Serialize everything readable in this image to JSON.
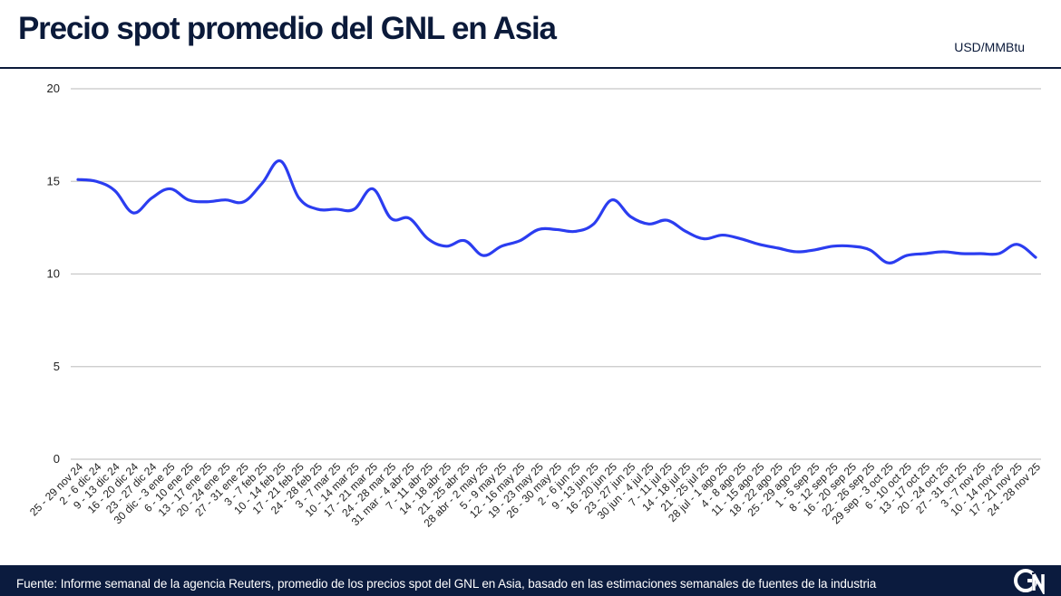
{
  "header": {
    "title": "Precio spot promedio del GNL en Asia",
    "unit": "USD/MMBtu"
  },
  "footer": {
    "source": "Fuente: Informe semanal de la agencia Reuters, promedio de los precios spot del GNL en Asia, basado en las estimaciones semanales de fuentes de la industria",
    "logo_icon": "gnl-logo-icon"
  },
  "colors": {
    "line": "#2b3df0",
    "grid": "#c8c8c8",
    "footer_bg": "#0b1b3e",
    "title": "#0b1a3a"
  },
  "chart_data": {
    "type": "line",
    "title": "Precio spot promedio del GNL en Asia",
    "ylabel": "USD/MMBtu",
    "xlabel": "",
    "ylim": [
      0,
      20
    ],
    "yticks": [
      0,
      5,
      10,
      15,
      20
    ],
    "grid": true,
    "categories": [
      "25 - 29 nov 24",
      "2 - 6 dic 24",
      "9 - 13 dic 24",
      "16 - 20 dic 24",
      "23 - 27 dic 24",
      "30 dic - 3 ene 25",
      "6 - 10 ene 25",
      "13 - 17 ene 25",
      "20 - 24 ene 25",
      "27 - 31 ene 25",
      "3 - 7 feb 25",
      "10 - 14 feb 25",
      "17 - 21 feb 25",
      "24 - 28 feb 25",
      "3 - 7 mar 25",
      "10 - 14 mar 25",
      "17 - 21 mar 25",
      "24 - 28 mar 25",
      "31 mar - 4 abr 25",
      "7 - 11 abr 25",
      "14 - 18 abr 25",
      "21 - 25 abr 25",
      "28 abr - 2 may 25",
      "5 - 9 may 25",
      "12 - 16 may 25",
      "19 - 23 may 25",
      "26 - 30 may 25",
      "2 - 6 jun 25",
      "9 - 13 jun 25",
      "16 - 20 jun 25",
      "23 - 27 jun 25",
      "30 jun - 4 jul 25",
      "7 - 11 jul 25",
      "14 - 18 jul 25",
      "21 - 25 jul 25",
      "28 jul - 1 ago 25",
      "4 - 8 ago 25",
      "11 - 15 ago 25",
      "18 - 22 ago 25",
      "25 - 29 ago 25",
      "1 - 5 sep 25",
      "8 - 12 sep 25",
      "16 - 20 sep 25",
      "22 - 26 sep 25",
      "29 sep - 3 oct 25",
      "6 - 10 oct 25",
      "13 - 17 oct 25",
      "20 - 24 oct 25",
      "27 - 31 oct 25",
      "3 - 7 nov 25",
      "10 - 14 nov 25",
      "17 - 21 nov 25",
      "24 - 28 nov 25"
    ],
    "series": [
      {
        "values": [
          15.1,
          15.0,
          14.5,
          13.3,
          14.1,
          14.6,
          14.0,
          13.9,
          14.0,
          13.9,
          14.9,
          16.1,
          14.1,
          13.5,
          13.5,
          13.5,
          14.6,
          13.0,
          13.0,
          11.9,
          11.5,
          11.8,
          11.0,
          11.5,
          11.8,
          12.4,
          12.4,
          12.3,
          12.7,
          14.0,
          13.1,
          12.7,
          12.9,
          12.3,
          11.9,
          12.1,
          11.9,
          11.6,
          11.4,
          11.2,
          11.3,
          11.5,
          11.5,
          11.3,
          10.6,
          11.0,
          11.1,
          11.2,
          11.1,
          11.1,
          11.1,
          11.6,
          10.9
        ]
      }
    ]
  }
}
